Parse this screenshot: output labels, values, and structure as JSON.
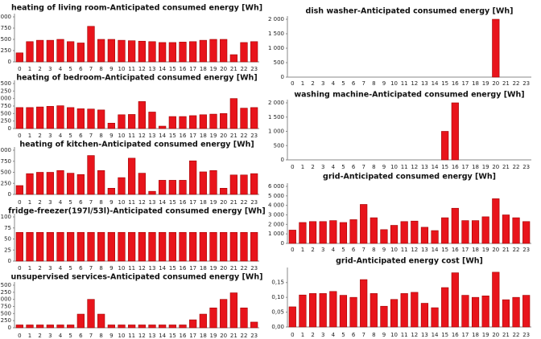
{
  "chart_data": [
    {
      "type": "bar",
      "title": "heating of living room-Anticipated consumed energy [Wh]",
      "categories": [
        "0",
        "1",
        "2",
        "3",
        "4",
        "5",
        "6",
        "7",
        "8",
        "9",
        "10",
        "11",
        "12",
        "13",
        "14",
        "15",
        "16",
        "17",
        "18",
        "19",
        "20",
        "21",
        "22",
        "23"
      ],
      "values": [
        200,
        450,
        480,
        480,
        500,
        450,
        420,
        790,
        500,
        500,
        480,
        470,
        460,
        450,
        430,
        430,
        440,
        450,
        480,
        500,
        500,
        160,
        430,
        450
      ],
      "color": "#e8141b",
      "ylim": [
        0,
        1000
      ],
      "yticks": [
        0,
        250,
        500,
        750,
        {
          "value": 1000,
          "label": "1,000"
        }
      ]
    },
    {
      "type": "bar",
      "title": "heating of bedroom-Anticipated consumed energy [Wh]",
      "categories": [
        "0",
        "1",
        "2",
        "3",
        "4",
        "5",
        "6",
        "7",
        "8",
        "9",
        "10",
        "11",
        "12",
        "13",
        "14",
        "15",
        "16",
        "17",
        "18",
        "19",
        "20",
        "21",
        "22",
        "23"
      ],
      "values": [
        700,
        700,
        720,
        740,
        760,
        700,
        660,
        650,
        620,
        180,
        460,
        470,
        900,
        550,
        80,
        400,
        400,
        430,
        460,
        480,
        500,
        1000,
        680,
        700
      ],
      "color": "#e8141b",
      "ylim": [
        0,
        1500
      ],
      "yticks": [
        0,
        250,
        500,
        750,
        {
          "value": 1000,
          "label": "1,000"
        },
        {
          "value": 1250,
          "label": "1,250"
        },
        {
          "value": 1500,
          "label": "1,500"
        }
      ]
    },
    {
      "type": "bar",
      "title": "heating of kitchen-Anticipated consumed energy [Wh]",
      "categories": [
        "0",
        "1",
        "2",
        "3",
        "4",
        "5",
        "6",
        "7",
        "8",
        "9",
        "10",
        "11",
        "12",
        "13",
        "14",
        "15",
        "16",
        "17",
        "18",
        "19",
        "20",
        "21",
        "22",
        "23"
      ],
      "values": [
        200,
        470,
        500,
        500,
        540,
        480,
        450,
        880,
        540,
        140,
        380,
        820,
        480,
        70,
        320,
        320,
        320,
        760,
        510,
        540,
        140,
        440,
        440,
        470
      ],
      "color": "#e8141b",
      "ylim": [
        0,
        1000
      ],
      "yticks": [
        0,
        250,
        500,
        750,
        {
          "value": 1000,
          "label": "1,000"
        }
      ]
    },
    {
      "type": "bar",
      "title": "fridge-freezer(197l/53l)-Anticipated consumed energy [Wh]",
      "categories": [
        "0",
        "1",
        "2",
        "3",
        "4",
        "5",
        "6",
        "7",
        "8",
        "9",
        "10",
        "11",
        "12",
        "13",
        "14",
        "15",
        "16",
        "17",
        "18",
        "19",
        "20",
        "21",
        "22",
        "23"
      ],
      "values": [
        65,
        65,
        65,
        65,
        65,
        65,
        65,
        65,
        65,
        65,
        65,
        65,
        65,
        65,
        65,
        65,
        65,
        65,
        65,
        65,
        65,
        65,
        65,
        65
      ],
      "color": "#e8141b",
      "ylim": [
        0,
        100
      ],
      "yticks": [
        0,
        25,
        50,
        75,
        100
      ]
    },
    {
      "type": "bar",
      "title": "unsupervised services-Anticipated consumed energy [Wh]",
      "categories": [
        "0",
        "1",
        "2",
        "3",
        "4",
        "5",
        "6",
        "7",
        "8",
        "9",
        "10",
        "11",
        "12",
        "13",
        "14",
        "15",
        "16",
        "17",
        "18",
        "19",
        "20",
        "21",
        "22",
        "23"
      ],
      "values": [
        100,
        100,
        100,
        100,
        100,
        100,
        480,
        1000,
        480,
        100,
        100,
        100,
        100,
        100,
        100,
        100,
        100,
        280,
        480,
        700,
        1000,
        1230,
        700,
        200
      ],
      "color": "#e8141b",
      "ylim": [
        0,
        1500
      ],
      "yticks": [
        0,
        250,
        500,
        750,
        {
          "value": 1000,
          "label": "1,000"
        },
        {
          "value": 1250,
          "label": "1,250"
        },
        {
          "value": 1500,
          "label": "1,500"
        }
      ]
    },
    {
      "type": "bar",
      "title": "dish washer-Anticipated consumed energy [Wh]",
      "categories": [
        "0",
        "1",
        "2",
        "3",
        "4",
        "5",
        "6",
        "7",
        "8",
        "9",
        "10",
        "11",
        "12",
        "13",
        "14",
        "15",
        "16",
        "17",
        "18",
        "19",
        "20",
        "21",
        "22",
        "23"
      ],
      "values": [
        0,
        0,
        0,
        0,
        0,
        0,
        0,
        0,
        0,
        0,
        0,
        0,
        0,
        0,
        0,
        0,
        0,
        0,
        0,
        0,
        2000,
        0,
        0,
        0
      ],
      "color": "#e8141b",
      "ylim": [
        0,
        2000
      ],
      "yticks": [
        0,
        500,
        {
          "value": 1000,
          "label": "1 000"
        },
        {
          "value": 1500,
          "label": "1 500"
        },
        {
          "value": 2000,
          "label": "2 000"
        }
      ]
    },
    {
      "type": "bar",
      "title": "washing machine-Anticipated consumed energy [Wh]",
      "categories": [
        "0",
        "1",
        "2",
        "3",
        "4",
        "5",
        "6",
        "7",
        "8",
        "9",
        "10",
        "11",
        "12",
        "13",
        "14",
        "15",
        "16",
        "17",
        "18",
        "19",
        "20",
        "21",
        "22",
        "23"
      ],
      "values": [
        0,
        0,
        0,
        0,
        0,
        0,
        0,
        0,
        0,
        0,
        0,
        0,
        0,
        0,
        0,
        1000,
        2000,
        0,
        0,
        0,
        0,
        0,
        0,
        0
      ],
      "color": "#e8141b",
      "ylim": [
        0,
        2000
      ],
      "yticks": [
        0,
        500,
        {
          "value": 1000,
          "label": "1 000"
        },
        {
          "value": 1500,
          "label": "1 500"
        },
        {
          "value": 2000,
          "label": "2 000"
        }
      ]
    },
    {
      "type": "bar",
      "title": "grid-Anticipated consumed energy [Wh]",
      "categories": [
        "0",
        "1",
        "2",
        "3",
        "4",
        "5",
        "6",
        "7",
        "8",
        "9",
        "10",
        "11",
        "12",
        "13",
        "14",
        "15",
        "16",
        "17",
        "18",
        "19",
        "20",
        "21",
        "22",
        "23"
      ],
      "values": [
        1400,
        2200,
        2300,
        2300,
        2400,
        2200,
        2500,
        4100,
        2700,
        1450,
        1900,
        2300,
        2350,
        1700,
        1350,
        2700,
        3700,
        2400,
        2400,
        2800,
        4700,
        3000,
        2700,
        2300
      ],
      "color": "#e8141b",
      "ylim": [
        0,
        6000
      ],
      "yticks": [
        0,
        {
          "value": 1000,
          "label": "1 000"
        },
        {
          "value": 2000,
          "label": "2 000"
        },
        {
          "value": 3000,
          "label": "3 000"
        },
        {
          "value": 4000,
          "label": "4 000"
        },
        {
          "value": 5000,
          "label": "5 000"
        },
        {
          "value": 6000,
          "label": "6 000"
        }
      ]
    },
    {
      "type": "bar",
      "title": "grid-Anticipated energy cost [Wh]",
      "categories": [
        "0",
        "1",
        "2",
        "3",
        "4",
        "5",
        "6",
        "7",
        "8",
        "9",
        "10",
        "11",
        "12",
        "13",
        "14",
        "15",
        "16",
        "17",
        "18",
        "19",
        "20",
        "21",
        "22",
        "23"
      ],
      "values": [
        0.068,
        0.108,
        0.113,
        0.113,
        0.12,
        0.107,
        0.1,
        0.16,
        0.113,
        0.07,
        0.093,
        0.113,
        0.117,
        0.08,
        0.065,
        0.133,
        0.183,
        0.107,
        0.1,
        0.105,
        0.185,
        0.092,
        0.1,
        0.107
      ],
      "color": "#e8141b",
      "ylim": [
        0,
        0.19
      ],
      "yticks": [
        {
          "value": 0,
          "label": "0,00"
        },
        {
          "value": 0.05,
          "label": "0,05"
        },
        {
          "value": 0.1,
          "label": "0,10"
        },
        {
          "value": 0.15,
          "label": "0,15"
        }
      ]
    }
  ]
}
